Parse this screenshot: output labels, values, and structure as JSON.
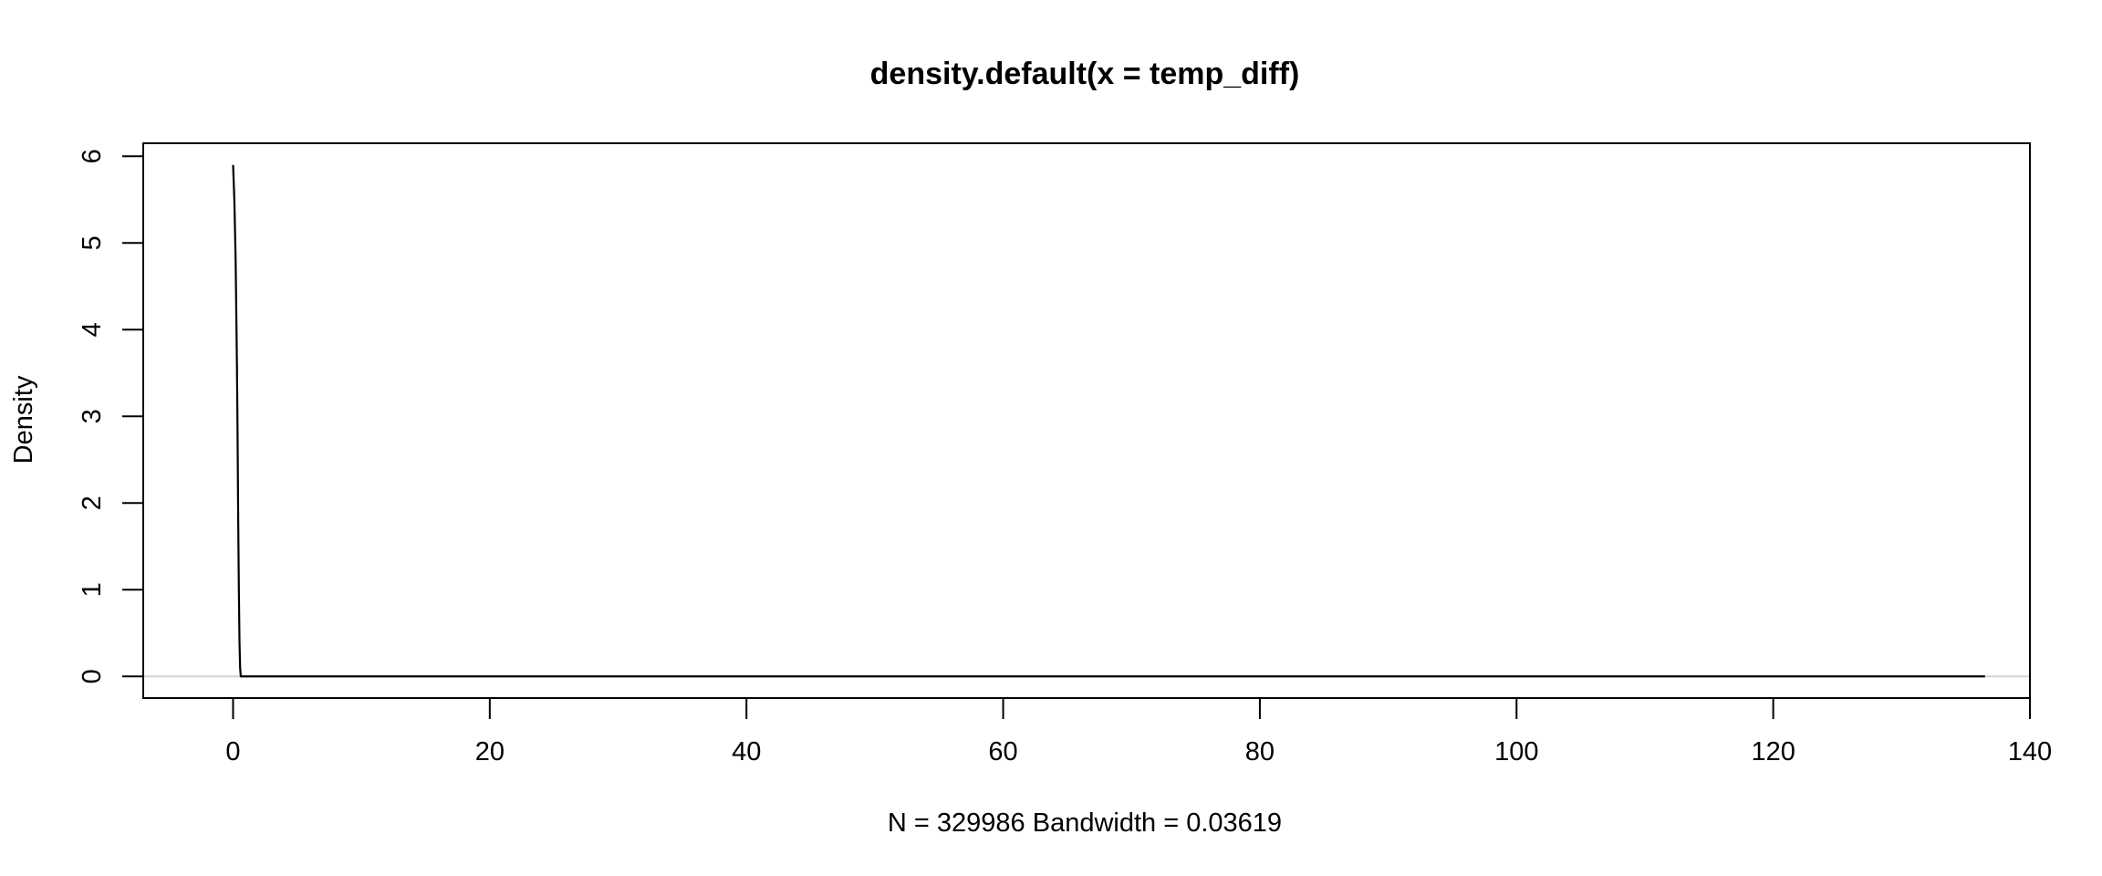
{
  "chart_data": {
    "type": "line",
    "title": "density.default(x = temp_diff)",
    "xlabel": "N = 329986   Bandwidth = 0.03619",
    "ylabel": "Density",
    "xlim": [
      -7,
      140
    ],
    "ylim": [
      -0.25,
      6.15
    ],
    "xticks": [
      0,
      20,
      40,
      60,
      80,
      100,
      120,
      140
    ],
    "yticks": [
      0,
      1,
      2,
      3,
      4,
      5,
      6
    ],
    "grid": false,
    "legend": "none",
    "baseline": 0,
    "baseline_color": "#d3d3d3",
    "line_color": "#000000",
    "series": [
      {
        "x": [
          0.0,
          0.1,
          0.2,
          0.3,
          0.35,
          0.4,
          0.45,
          0.5,
          0.55,
          0.6,
          1.0,
          5,
          20,
          40,
          60,
          80,
          100,
          120,
          136.5
        ],
        "values": [
          5.9,
          5.5,
          4.8,
          3.6,
          2.8,
          1.8,
          1.0,
          0.4,
          0.1,
          0.0,
          0.0,
          0.0,
          0.0,
          0.0,
          0.0,
          0.0,
          0.0,
          0.0,
          0.0
        ]
      }
    ]
  }
}
